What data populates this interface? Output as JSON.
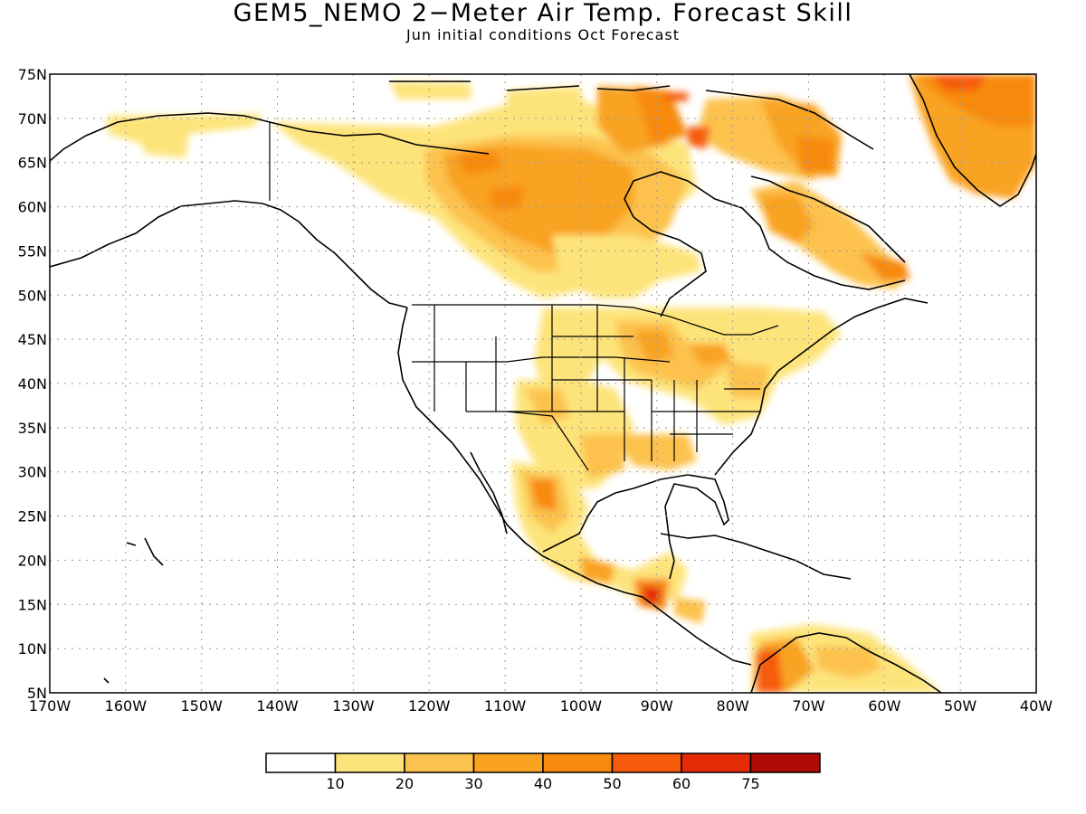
{
  "title": "GEM5_NEMO 2−Meter Air Temp. Forecast Skill",
  "subtitle": "Jun initial conditions  Oct Forecast",
  "map": {
    "lon_range": [
      -170,
      -40
    ],
    "lat_range": [
      5,
      75
    ],
    "lon_ticks": [
      "170W",
      "160W",
      "150W",
      "140W",
      "130W",
      "120W",
      "110W",
      "100W",
      "90W",
      "80W",
      "70W",
      "60W",
      "50W",
      "40W"
    ],
    "lat_ticks": [
      "75N",
      "70N",
      "65N",
      "60N",
      "55N",
      "50N",
      "45N",
      "40N",
      "35N",
      "30N",
      "25N",
      "20N",
      "15N",
      "10N",
      "5N"
    ],
    "gridlines": "dotted"
  },
  "legend": {
    "colors": [
      "#ffffff",
      "#fde47a",
      "#fcc24e",
      "#f9a320",
      "#f78a0c",
      "#f55b0a",
      "#e52a08",
      "#b00a05"
    ],
    "labels": [
      "10",
      "20",
      "30",
      "40",
      "50",
      "60",
      "75"
    ]
  }
}
